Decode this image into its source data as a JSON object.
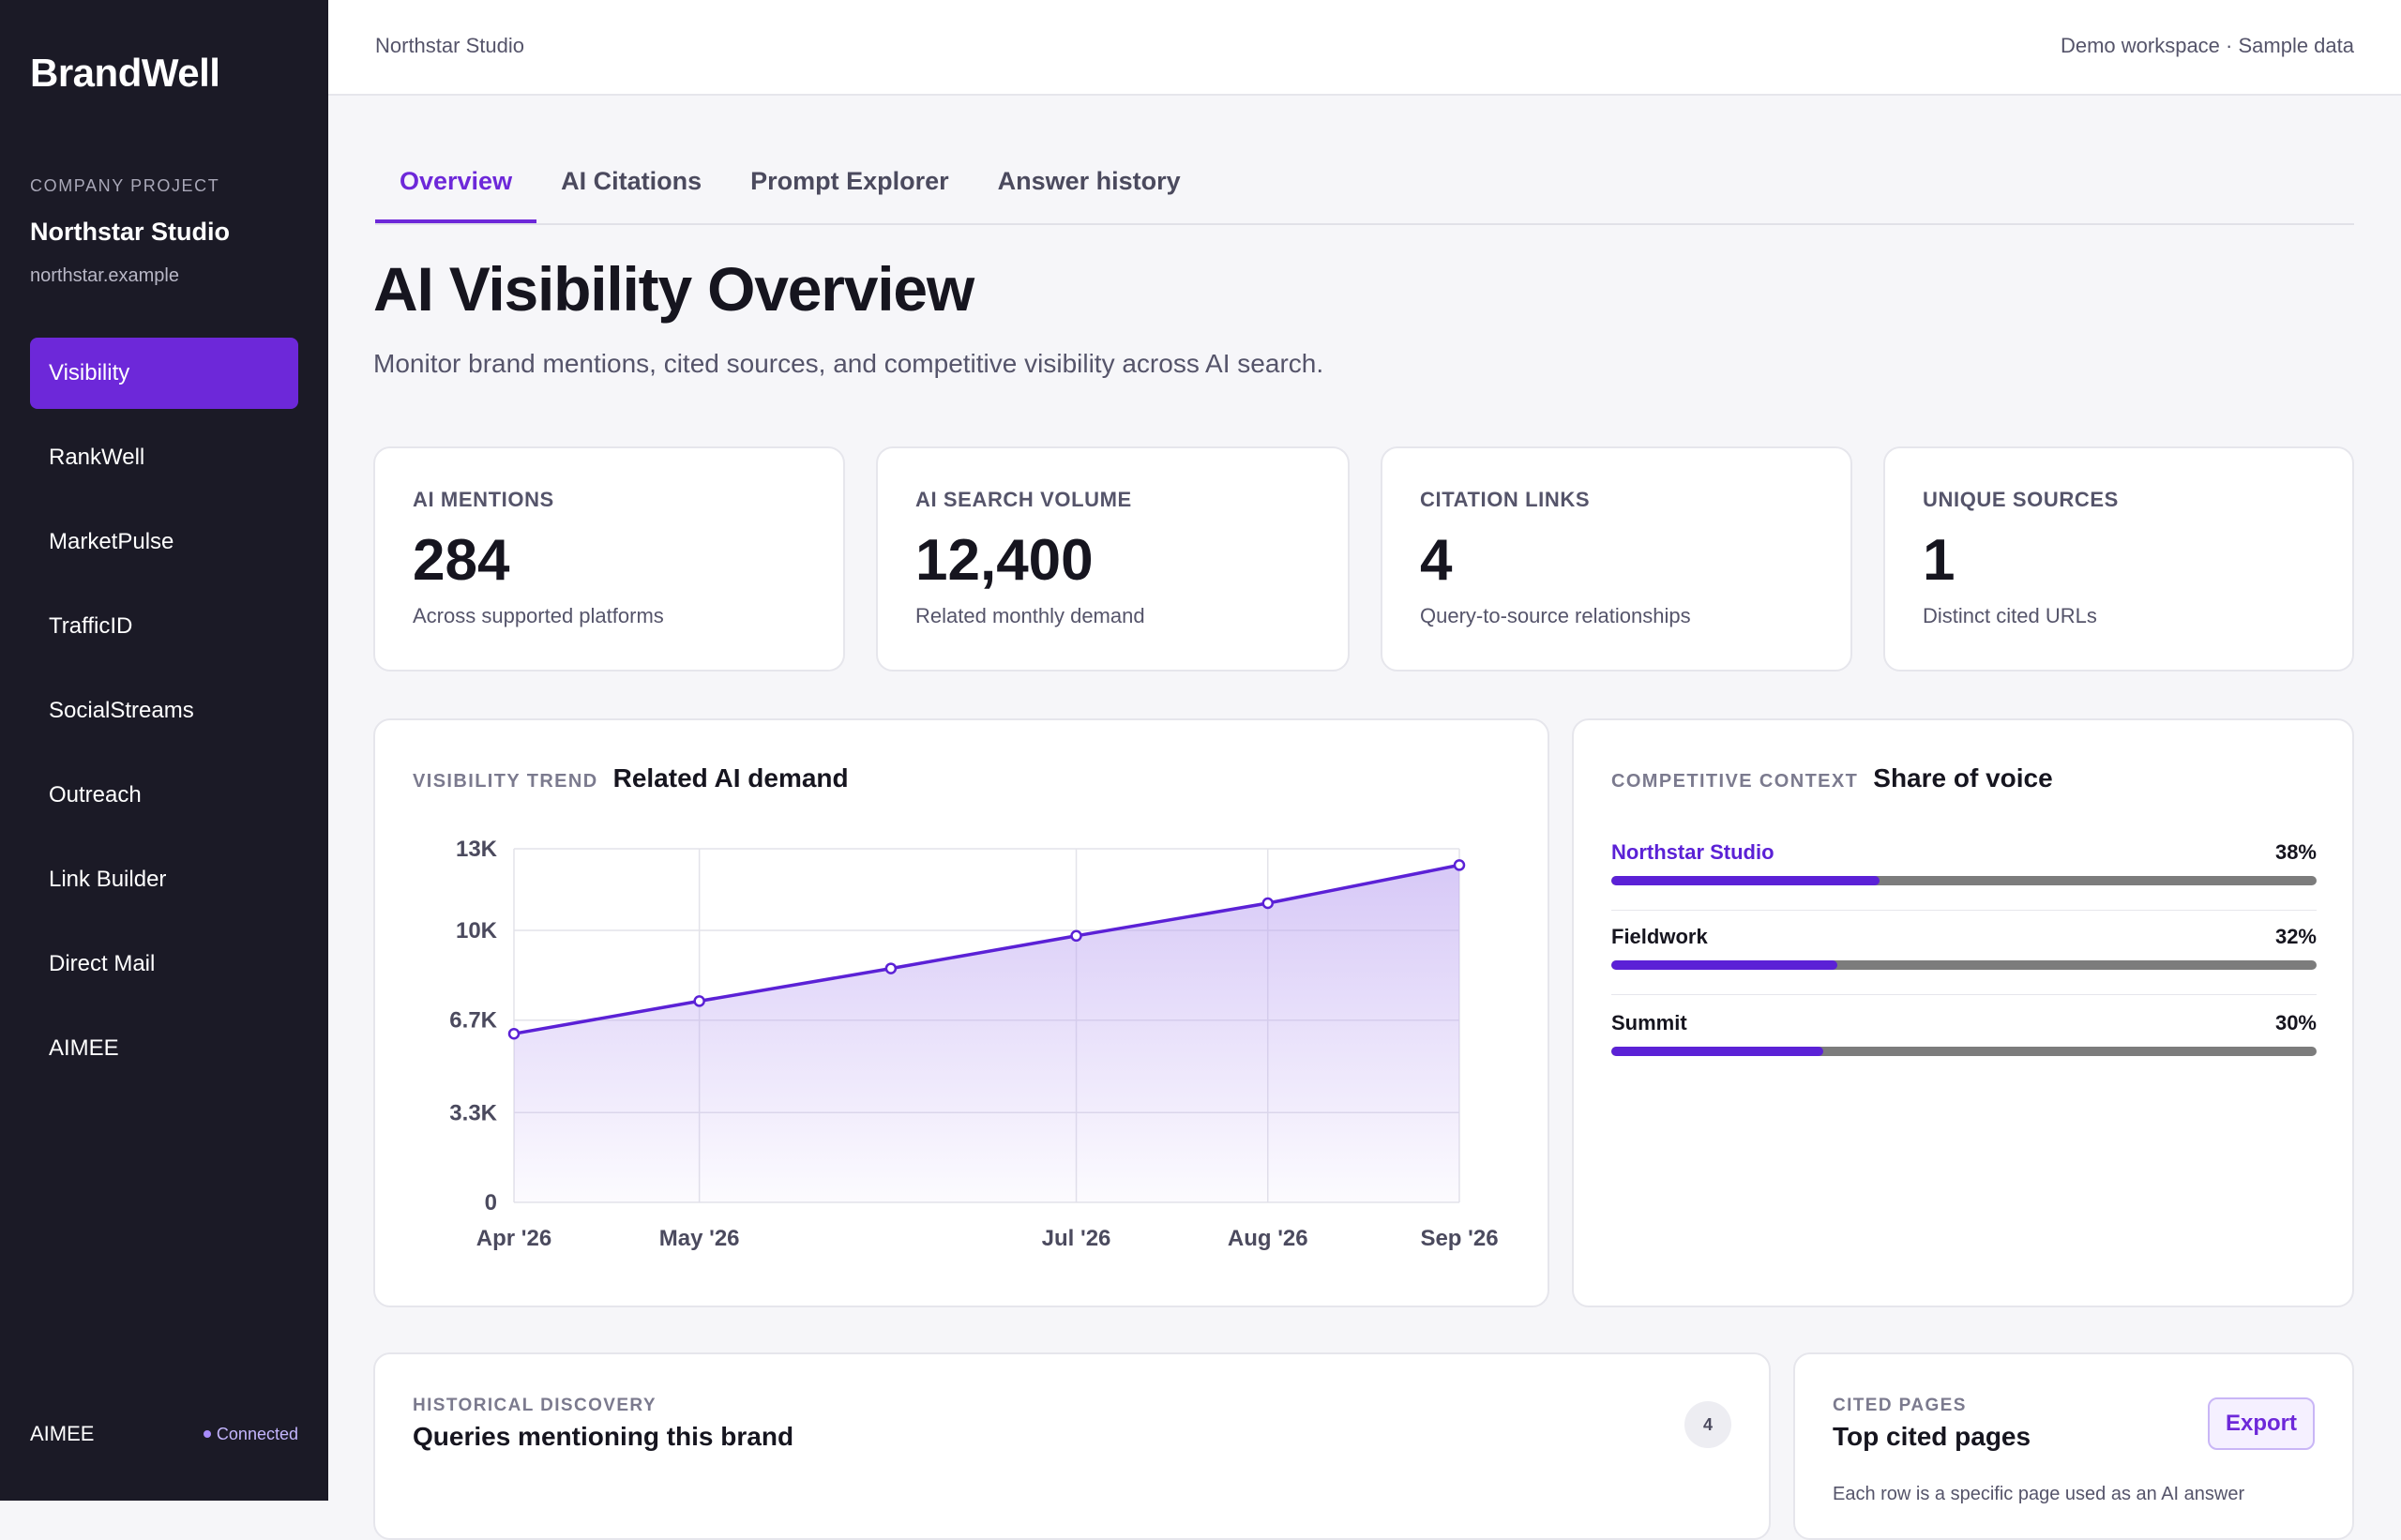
{
  "sidebar": {
    "brand": "BrandWell",
    "project_label": "COMPANY PROJECT",
    "project_name": "Northstar Studio",
    "project_domain": "northstar.example",
    "items": [
      {
        "label": "Visibility"
      },
      {
        "label": "RankWell"
      },
      {
        "label": "MarketPulse"
      },
      {
        "label": "TrafficID"
      },
      {
        "label": "SocialStreams"
      },
      {
        "label": "Outreach"
      },
      {
        "label": "Link Builder"
      },
      {
        "label": "Direct Mail"
      },
      {
        "label": "AIMEE"
      }
    ],
    "active_item": "Visibility",
    "footer_name": "AIMEE",
    "footer_status": "Connected"
  },
  "topbar": {
    "left": "Northstar Studio",
    "right": "Demo workspace · Sample data"
  },
  "tabs": [
    {
      "label": "Overview"
    },
    {
      "label": "AI Citations"
    },
    {
      "label": "Prompt Explorer"
    },
    {
      "label": "Answer history"
    }
  ],
  "active_tab": "Overview",
  "page": {
    "title": "AI Visibility Overview",
    "subtitle": "Monitor brand mentions, cited sources, and competitive visibility across AI search."
  },
  "kpis": [
    {
      "label": "AI MENTIONS",
      "value": "284",
      "sub": "Across supported platforms"
    },
    {
      "label": "AI SEARCH VOLUME",
      "value": "12,400",
      "sub": "Related monthly demand"
    },
    {
      "label": "CITATION LINKS",
      "value": "4",
      "sub": "Query-to-source relationships"
    },
    {
      "label": "UNIQUE SOURCES",
      "value": "1",
      "sub": "Distinct cited URLs"
    }
  ],
  "trend": {
    "kicker": "VISIBILITY TREND",
    "title": "Related AI demand"
  },
  "chart_data": {
    "type": "area",
    "x_dates": [
      "2026-04-01",
      "2026-05-01",
      "2026-06-01",
      "2026-07-01",
      "2026-08-01",
      "2026-09-01"
    ],
    "x": [
      "Apr '26",
      "May '26",
      "",
      "Jul '26",
      "Aug '26",
      "Sep '26"
    ],
    "x_tick_labels": [
      "Apr '26",
      "May '26",
      "Jul '26",
      "Aug '26",
      "Sep '26"
    ],
    "series": [
      {
        "values": [
          6200,
          7400,
          8600,
          9800,
          11000,
          12400
        ]
      }
    ],
    "ylim": [
      0,
      13000
    ],
    "y_ticks": [
      0,
      3300,
      6700,
      10000,
      13000
    ],
    "y_tick_labels": [
      "0",
      "3.3K",
      "6.7K",
      "10K",
      "13K"
    ],
    "grid": true,
    "color": "#5b21d6",
    "fill_color": "#b69cf0"
  },
  "share_of_voice": {
    "kicker": "COMPETITIVE CONTEXT",
    "title": "Share of voice",
    "rows": [
      {
        "name": "Northstar Studio",
        "pct_label": "38%",
        "fraction": 0.38,
        "highlight": true
      },
      {
        "name": "Fieldwork",
        "pct_label": "32%",
        "fraction": 0.32,
        "highlight": false
      },
      {
        "name": "Summit",
        "pct_label": "30%",
        "fraction": 0.3,
        "highlight": false
      }
    ]
  },
  "historical": {
    "kicker": "HISTORICAL DISCOVERY",
    "title": "Queries mentioning this brand",
    "count": "4"
  },
  "cited_pages": {
    "kicker": "CITED PAGES",
    "title": "Top cited pages",
    "export_label": "Export",
    "desc": "Each row is a specific page used as an AI answer"
  },
  "colors": {
    "accent": "#6d28d9",
    "sidebar_bg": "#1b1a26"
  }
}
